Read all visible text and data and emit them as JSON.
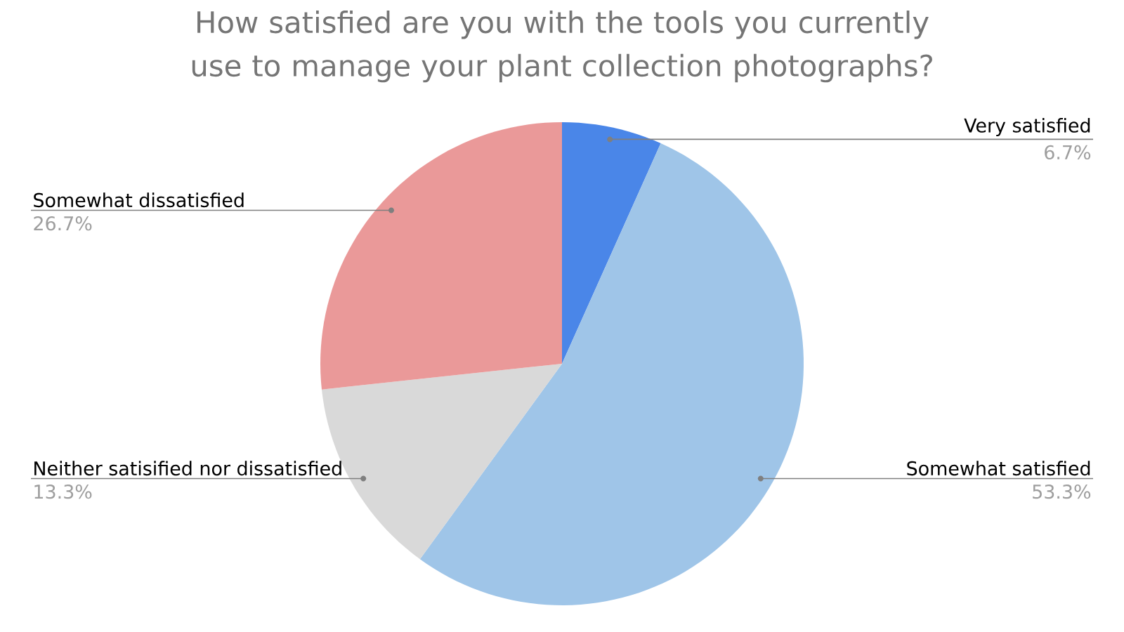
{
  "chart_data": {
    "type": "pie",
    "title": "How satisfied are you with the tools you currently use to manage your plant collection photographs?",
    "categories": [
      "Very satisfied",
      "Somewhat satisfied",
      "Neither satisified nor dissatisfied",
      "Somewhat dissatisfied"
    ],
    "values": [
      6.7,
      53.3,
      13.3,
      26.7
    ],
    "value_labels": [
      "6.7%",
      "53.3%",
      "13.3%",
      "26.7%"
    ],
    "colors": [
      "#4a86e8",
      "#9fc5e8",
      "#d9d9d9",
      "#ea9999"
    ],
    "legend": false
  }
}
